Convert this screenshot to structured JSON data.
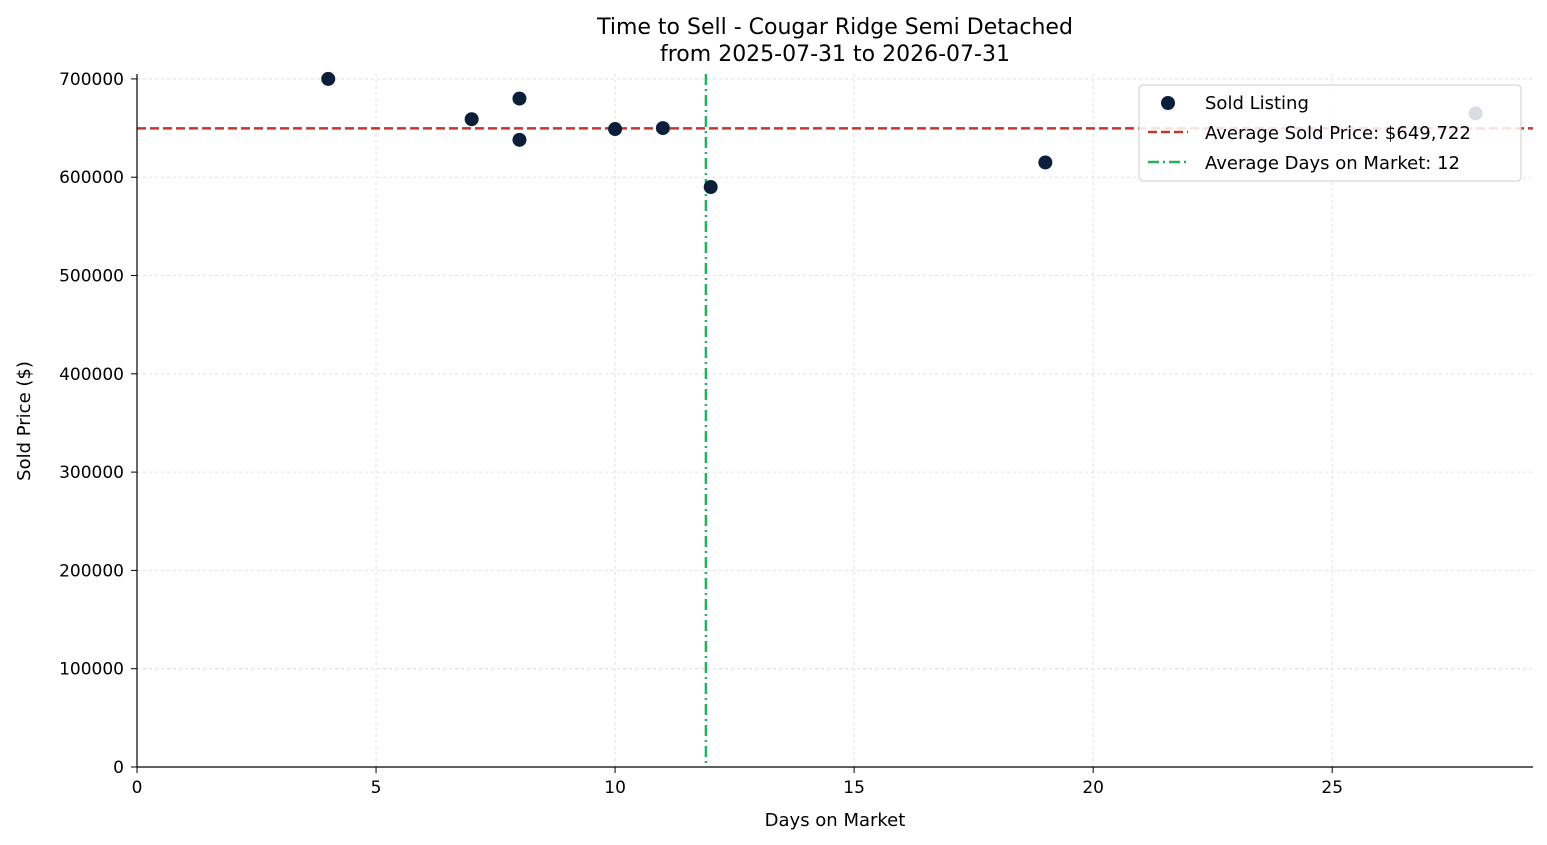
{
  "chart_data": {
    "type": "scatter",
    "title": "Time to Sell - Cougar Ridge Semi Detached",
    "subtitle": "from 2025-07-31 to 2026-07-31",
    "xlabel": "Days on Market",
    "ylabel": "Sold Price ($)",
    "xlim": [
      0,
      29.2
    ],
    "ylim": [
      0,
      705000
    ],
    "xticks": [
      0,
      5,
      10,
      15,
      20,
      25
    ],
    "yticks": [
      0,
      100000,
      200000,
      300000,
      400000,
      500000,
      600000,
      700000
    ],
    "grid": true,
    "legend_placement": "top-right",
    "series": [
      {
        "name": "Sold Listing",
        "color": "#0b1f3a",
        "points": [
          {
            "x": 4,
            "y": 700000
          },
          {
            "x": 7,
            "y": 659000
          },
          {
            "x": 8,
            "y": 680000
          },
          {
            "x": 8,
            "y": 638000
          },
          {
            "x": 10,
            "y": 649000
          },
          {
            "x": 11,
            "y": 650000
          },
          {
            "x": 12,
            "y": 590000
          },
          {
            "x": 19,
            "y": 615000
          },
          {
            "x": 28,
            "y": 665000
          }
        ]
      }
    ],
    "reference_lines": [
      {
        "name": "Average Sold Price: $649,722",
        "orientation": "horizontal",
        "value": 649722,
        "color": "#c0392b",
        "style": "dashed"
      },
      {
        "name": "Average Days on Market: 12",
        "orientation": "vertical",
        "value": 11.9,
        "color": "#27ae60",
        "style": "dashdot"
      }
    ]
  }
}
